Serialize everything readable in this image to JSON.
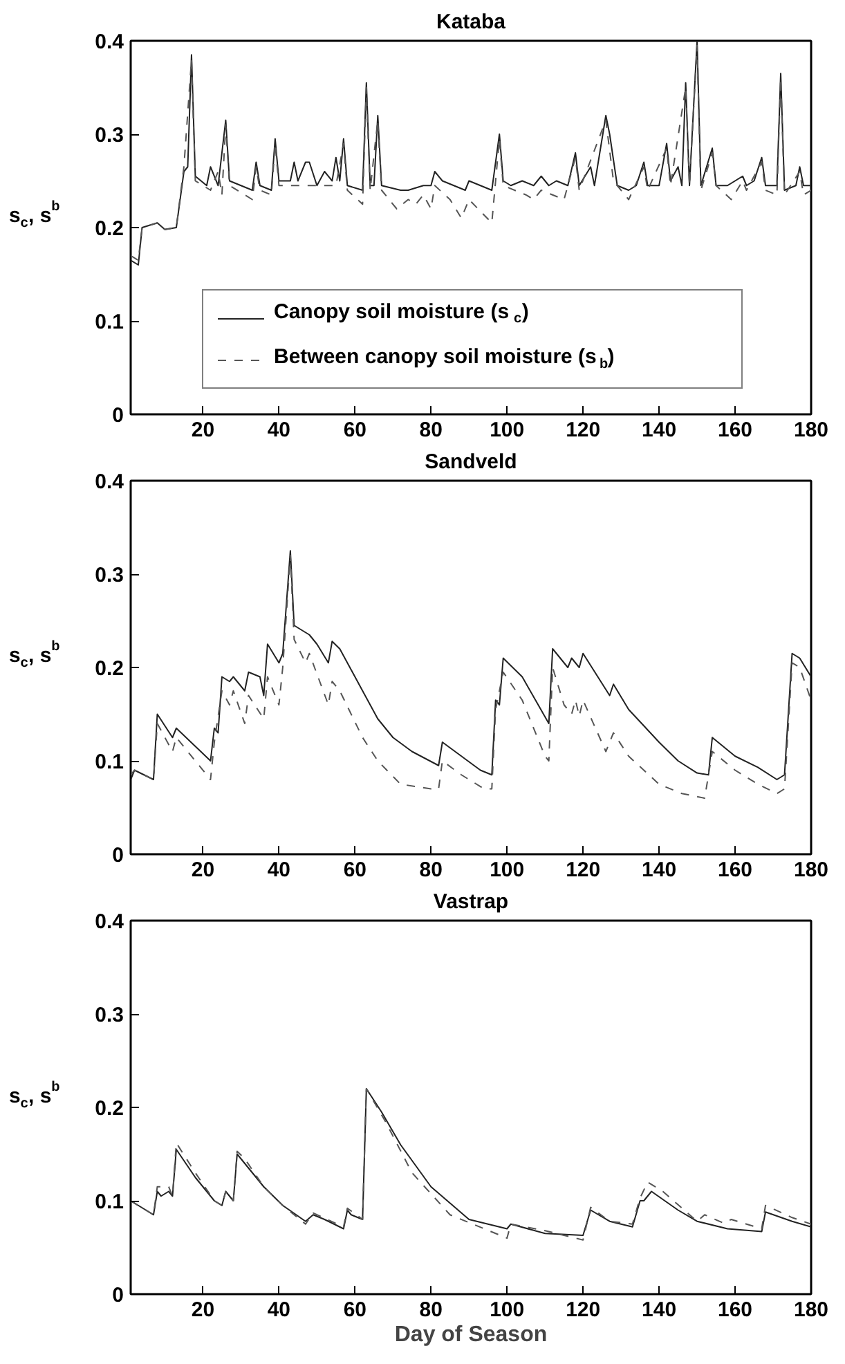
{
  "chart_data": [
    {
      "type": "line",
      "title": "Kataba",
      "ylabel": "s$_{c}$, s$^{b}$",
      "xlim": [
        1,
        180
      ],
      "ylim": [
        0,
        0.4
      ],
      "xticks": [
        20,
        40,
        60,
        80,
        100,
        120,
        140,
        160,
        180
      ],
      "yticks": [
        0,
        0.1,
        0.2,
        0.3,
        0.4
      ],
      "grid": false,
      "legend": "bottom",
      "series": [
        {
          "name": "Canopy soil moisture (s$_{c}$)",
          "color": "#222222",
          "line_style": "solid",
          "x": [
            1,
            3,
            4,
            8,
            10,
            13,
            15,
            16,
            17,
            18,
            21,
            22,
            24,
            26,
            27,
            30,
            33,
            34,
            35,
            38,
            39,
            40,
            43,
            44,
            45,
            47,
            48,
            50,
            52,
            54,
            55,
            56,
            57,
            58,
            62,
            63,
            64,
            65,
            66,
            67,
            72,
            74,
            78,
            80,
            81,
            83,
            89,
            90,
            96,
            98,
            99,
            101,
            104,
            107,
            109,
            111,
            113,
            116,
            118,
            119,
            122,
            123,
            126,
            127,
            129,
            132,
            134,
            136,
            137,
            140,
            142,
            143,
            145,
            146,
            147,
            148,
            150,
            151,
            154,
            155,
            158,
            162,
            163,
            165,
            167,
            168,
            171,
            172,
            173,
            176,
            177,
            178,
            180
          ],
          "values": [
            0.165,
            0.16,
            0.2,
            0.205,
            0.198,
            0.2,
            0.26,
            0.265,
            0.385,
            0.255,
            0.245,
            0.265,
            0.245,
            0.315,
            0.25,
            0.245,
            0.24,
            0.27,
            0.245,
            0.24,
            0.295,
            0.25,
            0.25,
            0.27,
            0.25,
            0.27,
            0.27,
            0.245,
            0.26,
            0.25,
            0.275,
            0.25,
            0.295,
            0.245,
            0.24,
            0.355,
            0.245,
            0.245,
            0.32,
            0.245,
            0.24,
            0.24,
            0.245,
            0.245,
            0.26,
            0.25,
            0.24,
            0.25,
            0.24,
            0.3,
            0.25,
            0.245,
            0.25,
            0.245,
            0.255,
            0.245,
            0.25,
            0.245,
            0.28,
            0.245,
            0.265,
            0.245,
            0.32,
            0.3,
            0.245,
            0.24,
            0.245,
            0.27,
            0.245,
            0.245,
            0.29,
            0.25,
            0.265,
            0.245,
            0.355,
            0.245,
            0.4,
            0.245,
            0.285,
            0.245,
            0.245,
            0.255,
            0.245,
            0.25,
            0.275,
            0.245,
            0.245,
            0.365,
            0.24,
            0.245,
            0.265,
            0.245,
            0.245
          ]
        },
        {
          "name": "Between canopy soil moisture (s$_{b}$)",
          "color": "#555555",
          "line_style": "dashed",
          "x": [
            1,
            3,
            4,
            8,
            10,
            13,
            15,
            17,
            18,
            22,
            24,
            25,
            26,
            27,
            33,
            34,
            35,
            38,
            39,
            40,
            55,
            57,
            58,
            62,
            63,
            64,
            66,
            67,
            71,
            74,
            76,
            78,
            80,
            81,
            85,
            88,
            90,
            96,
            98,
            99,
            105,
            107,
            109,
            115,
            118,
            119,
            126,
            128,
            132,
            136,
            137,
            142,
            143,
            147,
            148,
            150,
            151,
            154,
            155,
            159,
            162,
            163,
            167,
            168,
            171,
            172,
            173,
            177,
            178,
            180
          ],
          "values": [
            0.17,
            0.165,
            0.2,
            0.205,
            0.198,
            0.2,
            0.265,
            0.38,
            0.25,
            0.24,
            0.26,
            0.235,
            0.31,
            0.245,
            0.23,
            0.265,
            0.24,
            0.235,
            0.29,
            0.245,
            0.245,
            0.29,
            0.24,
            0.225,
            0.35,
            0.24,
            0.315,
            0.24,
            0.22,
            0.23,
            0.225,
            0.235,
            0.22,
            0.245,
            0.23,
            0.21,
            0.23,
            0.205,
            0.295,
            0.245,
            0.235,
            0.23,
            0.24,
            0.23,
            0.275,
            0.24,
            0.315,
            0.25,
            0.23,
            0.265,
            0.24,
            0.285,
            0.245,
            0.35,
            0.245,
            0.395,
            0.24,
            0.28,
            0.245,
            0.23,
            0.25,
            0.24,
            0.27,
            0.24,
            0.235,
            0.36,
            0.235,
            0.26,
            0.235,
            0.24
          ]
        }
      ]
    },
    {
      "type": "line",
      "title": "Sandveld",
      "ylabel": "s$_{c}$, s$^{b}$",
      "xlim": [
        1,
        180
      ],
      "ylim": [
        0,
        0.4
      ],
      "xticks": [
        20,
        40,
        60,
        80,
        100,
        120,
        140,
        160,
        180
      ],
      "yticks": [
        0,
        0.1,
        0.2,
        0.3,
        0.4
      ],
      "grid": false,
      "series": [
        {
          "color": "#222222",
          "line_style": "solid",
          "x": [
            1,
            2,
            7,
            8,
            12,
            13,
            22,
            23,
            24,
            25,
            27,
            28,
            31,
            32,
            35,
            36,
            37,
            40,
            41,
            43,
            44,
            48,
            50,
            53,
            54,
            56,
            62,
            66,
            70,
            75,
            82,
            83,
            88,
            93,
            96,
            97,
            98,
            99,
            104,
            111,
            112,
            116,
            117,
            119,
            120,
            127,
            128,
            132,
            140,
            145,
            150,
            153,
            154,
            160,
            166,
            171,
            173,
            175,
            177,
            180
          ],
          "values": [
            0.08,
            0.09,
            0.08,
            0.15,
            0.125,
            0.135,
            0.1,
            0.135,
            0.13,
            0.19,
            0.185,
            0.19,
            0.175,
            0.195,
            0.19,
            0.17,
            0.225,
            0.205,
            0.215,
            0.325,
            0.245,
            0.235,
            0.225,
            0.205,
            0.228,
            0.22,
            0.175,
            0.145,
            0.125,
            0.11,
            0.095,
            0.12,
            0.105,
            0.09,
            0.085,
            0.165,
            0.16,
            0.21,
            0.19,
            0.14,
            0.22,
            0.2,
            0.21,
            0.2,
            0.215,
            0.17,
            0.182,
            0.155,
            0.12,
            0.1,
            0.087,
            0.085,
            0.125,
            0.105,
            0.093,
            0.08,
            0.085,
            0.215,
            0.21,
            0.19
          ]
        },
        {
          "color": "#555555",
          "line_style": "dashed",
          "x": [
            1,
            2,
            7,
            8,
            12,
            13,
            22,
            23,
            25,
            27,
            28,
            31,
            32,
            36,
            37,
            40,
            41,
            43,
            44,
            47,
            48,
            53,
            54,
            56,
            62,
            66,
            72,
            80,
            82,
            83,
            88,
            94,
            96,
            97,
            99,
            104,
            110,
            111,
            112,
            115,
            117,
            118,
            119,
            120,
            126,
            128,
            132,
            140,
            146,
            152,
            154,
            160,
            166,
            171,
            173,
            175,
            177,
            180
          ],
          "values": [
            0.085,
            0.09,
            0.08,
            0.14,
            0.11,
            0.125,
            0.08,
            0.12,
            0.175,
            0.16,
            0.175,
            0.14,
            0.17,
            0.145,
            0.19,
            0.16,
            0.2,
            0.32,
            0.23,
            0.205,
            0.215,
            0.16,
            0.185,
            0.175,
            0.125,
            0.1,
            0.075,
            0.07,
            0.07,
            0.1,
            0.085,
            0.07,
            0.07,
            0.155,
            0.195,
            0.165,
            0.105,
            0.1,
            0.2,
            0.16,
            0.15,
            0.165,
            0.148,
            0.165,
            0.11,
            0.13,
            0.105,
            0.075,
            0.065,
            0.06,
            0.11,
            0.09,
            0.075,
            0.065,
            0.07,
            0.205,
            0.2,
            0.165
          ]
        }
      ]
    },
    {
      "type": "line",
      "title": "Vastrap",
      "xlabel": "Day of Season",
      "ylabel": "s$_{c}$, s$^{b}$",
      "xlim": [
        1,
        180
      ],
      "ylim": [
        0,
        0.4
      ],
      "xticks": [
        20,
        40,
        60,
        80,
        100,
        120,
        140,
        160,
        180
      ],
      "yticks": [
        0,
        0.1,
        0.2,
        0.3,
        0.4
      ],
      "grid": false,
      "series": [
        {
          "color": "#222222",
          "line_style": "solid",
          "x": [
            1,
            3,
            7,
            8,
            9,
            11,
            12,
            13,
            18,
            23,
            25,
            26,
            28,
            29,
            31,
            36,
            41,
            47,
            49,
            52,
            57,
            58,
            59,
            62,
            63,
            67,
            72,
            80,
            90,
            100,
            101,
            110,
            120,
            122,
            127,
            133,
            135,
            136,
            138,
            145,
            150,
            158,
            167,
            168,
            175,
            180
          ],
          "values": [
            0.1,
            0.095,
            0.085,
            0.11,
            0.105,
            0.11,
            0.105,
            0.155,
            0.125,
            0.1,
            0.095,
            0.11,
            0.1,
            0.15,
            0.14,
            0.115,
            0.095,
            0.078,
            0.085,
            0.08,
            0.07,
            0.09,
            0.085,
            0.08,
            0.22,
            0.195,
            0.16,
            0.115,
            0.08,
            0.07,
            0.075,
            0.065,
            0.063,
            0.09,
            0.078,
            0.072,
            0.1,
            0.1,
            0.11,
            0.09,
            0.078,
            0.07,
            0.067,
            0.088,
            0.078,
            0.072
          ]
        },
        {
          "color": "#555555",
          "line_style": "dashed",
          "x": [
            1,
            7,
            8,
            11,
            12,
            13,
            18,
            23,
            25,
            26,
            28,
            29,
            31,
            36,
            41,
            47,
            49,
            57,
            58,
            62,
            63,
            68,
            75,
            85,
            100,
            101,
            110,
            120,
            122,
            127,
            133,
            135,
            137,
            141,
            150,
            152,
            157,
            159,
            167,
            168,
            175,
            180
          ],
          "values": [
            0.1,
            0.085,
            0.115,
            0.115,
            0.105,
            0.162,
            0.13,
            0.1,
            0.095,
            0.11,
            0.1,
            0.153,
            0.145,
            0.115,
            0.095,
            0.075,
            0.087,
            0.072,
            0.092,
            0.08,
            0.22,
            0.185,
            0.13,
            0.085,
            0.06,
            0.075,
            0.068,
            0.058,
            0.093,
            0.078,
            0.075,
            0.103,
            0.12,
            0.11,
            0.078,
            0.085,
            0.076,
            0.08,
            0.07,
            0.095,
            0.082,
            0.075
          ]
        }
      ]
    }
  ]
}
